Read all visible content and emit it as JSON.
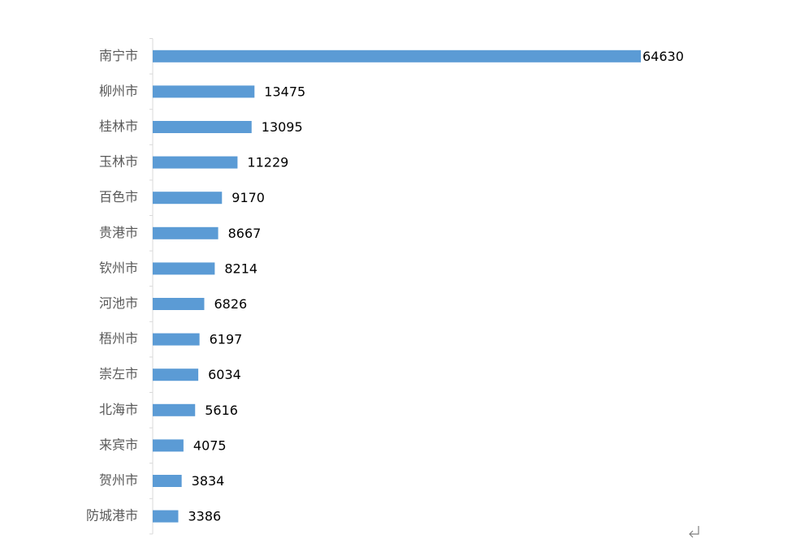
{
  "chart_data": {
    "type": "hbar",
    "categories": [
      "南宁市",
      "柳州市",
      "桂林市",
      "玉林市",
      "百色市",
      "贵港市",
      "钦州市",
      "河池市",
      "梧州市",
      "崇左市",
      "北海市",
      "来宾市",
      "贺州市",
      "防城港市"
    ],
    "values": [
      64630,
      13475,
      13095,
      11229,
      9170,
      8667,
      8214,
      6826,
      6197,
      6034,
      5616,
      4075,
      3834,
      3386
    ],
    "color": "#5b9bd5"
  }
}
